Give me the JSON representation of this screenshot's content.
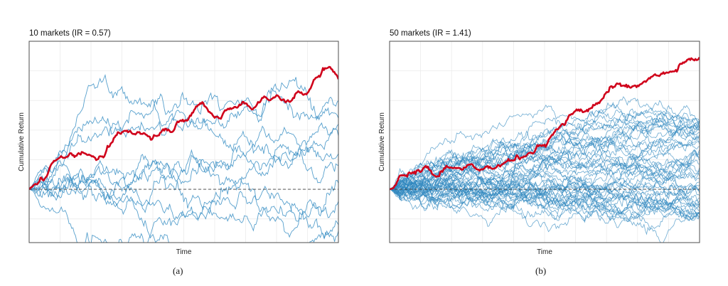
{
  "colors": {
    "markets": "#3a8fc4",
    "combined": "#d0021b",
    "grid": "#ebebeb",
    "frame": "#4d4d4d",
    "zero_line": "#3c3c3c"
  },
  "chart_data": [
    {
      "type": "line",
      "title": "10 markets (IR = 0.57)",
      "caption": "(a)",
      "xlabel": "Time",
      "ylabel": "Cumulative Return",
      "xlim": [
        0,
        100
      ],
      "ylim": [
        -9,
        25
      ],
      "reference_line": {
        "y": 0,
        "style": "dashed"
      },
      "grid": true,
      "num_market_series": 10,
      "combined_series": {
        "color": "#d0021b",
        "anchors": [
          [
            0,
            0
          ],
          [
            3,
            1.5
          ],
          [
            8,
            4.6
          ],
          [
            14,
            6.6
          ],
          [
            20,
            7.5
          ],
          [
            24,
            7.3
          ],
          [
            28,
            9.8
          ],
          [
            34,
            10.3
          ],
          [
            40,
            10.7
          ],
          [
            45,
            11.3
          ],
          [
            50,
            12
          ],
          [
            54,
            13.4
          ],
          [
            56,
            14.2
          ],
          [
            58,
            12.6
          ],
          [
            60,
            11.4
          ],
          [
            62,
            10.4
          ],
          [
            64,
            12.3
          ],
          [
            67,
            13.1
          ],
          [
            70,
            13.7
          ],
          [
            72,
            13.2
          ],
          [
            74,
            14.3
          ],
          [
            76,
            15.3
          ],
          [
            78,
            15.6
          ],
          [
            80,
            16.2
          ],
          [
            83,
            14.1
          ],
          [
            86,
            14.8
          ],
          [
            89,
            15.8
          ],
          [
            91,
            15.9
          ],
          [
            93,
            17.7
          ],
          [
            95,
            19.4
          ],
          [
            97,
            20.1
          ],
          [
            99,
            19.5
          ],
          [
            100,
            18.6
          ]
        ]
      },
      "market_series": [
        {
          "color": "#3a8fc4",
          "anchors": [
            [
              0,
              0
            ],
            [
              12,
              6
            ],
            [
              25,
              9
            ],
            [
              40,
              11
            ],
            [
              55,
              13
            ],
            [
              70,
              15
            ],
            [
              85,
              16
            ],
            [
              100,
              15
            ]
          ]
        },
        {
          "color": "#3a8fc4",
          "anchors": [
            [
              0,
              0
            ],
            [
              12,
              5
            ],
            [
              25,
              7
            ],
            [
              40,
              9
            ],
            [
              55,
              10
            ],
            [
              70,
              11
            ],
            [
              85,
              14
            ],
            [
              100,
              12
            ]
          ]
        },
        {
          "color": "#3a8fc4",
          "anchors": [
            [
              0,
              0
            ],
            [
              12,
              4
            ],
            [
              25,
              6
            ],
            [
              40,
              7
            ],
            [
              55,
              9
            ],
            [
              70,
              10
            ],
            [
              85,
              12
            ],
            [
              100,
              11
            ]
          ]
        },
        {
          "color": "#3a8fc4",
          "anchors": [
            [
              0,
              0
            ],
            [
              12,
              3
            ],
            [
              25,
              5
            ],
            [
              40,
              6
            ],
            [
              55,
              6
            ],
            [
              70,
              8
            ],
            [
              85,
              9
            ],
            [
              100,
              9
            ]
          ]
        },
        {
          "color": "#3a8fc4",
          "anchors": [
            [
              0,
              0
            ],
            [
              12,
              4
            ],
            [
              25,
              8
            ],
            [
              40,
              5
            ],
            [
              55,
              4
            ],
            [
              70,
              6
            ],
            [
              85,
              5
            ],
            [
              100,
              6
            ]
          ]
        },
        {
          "color": "#3a8fc4",
          "anchors": [
            [
              0,
              0
            ],
            [
              12,
              2
            ],
            [
              25,
              3
            ],
            [
              40,
              4
            ],
            [
              55,
              2
            ],
            [
              70,
              3
            ],
            [
              85,
              4
            ],
            [
              100,
              4
            ]
          ]
        },
        {
          "color": "#3a8fc4",
          "anchors": [
            [
              0,
              0
            ],
            [
              12,
              2
            ],
            [
              25,
              1
            ],
            [
              40,
              2
            ],
            [
              55,
              0
            ],
            [
              70,
              1
            ],
            [
              85,
              1
            ],
            [
              100,
              1
            ]
          ]
        },
        {
          "color": "#3a8fc4",
          "anchors": [
            [
              0,
              0
            ],
            [
              12,
              1
            ],
            [
              25,
              -1
            ],
            [
              40,
              -1
            ],
            [
              55,
              -2
            ],
            [
              70,
              -2
            ],
            [
              85,
              -3
            ],
            [
              100,
              -2
            ]
          ]
        },
        {
          "color": "#3a8fc4",
          "anchors": [
            [
              0,
              0
            ],
            [
              12,
              0
            ],
            [
              25,
              -2
            ],
            [
              40,
              -1
            ],
            [
              55,
              -3
            ],
            [
              70,
              -4
            ],
            [
              85,
              -5
            ],
            [
              100,
              -6
            ]
          ]
        },
        {
          "color": "#3a8fc4",
          "anchors": [
            [
              0,
              0
            ],
            [
              12,
              -1
            ],
            [
              25,
              -2
            ],
            [
              40,
              -3
            ],
            [
              55,
              -4
            ],
            [
              70,
              -5
            ],
            [
              80,
              -8.5
            ],
            [
              90,
              -6
            ],
            [
              100,
              -7
            ]
          ]
        }
      ]
    },
    {
      "type": "line",
      "title": "50 markets (IR = 1.41)",
      "caption": "(b)",
      "xlabel": "Time",
      "ylabel": "Cumulative Return",
      "xlim": [
        0,
        100
      ],
      "ylim": [
        -9,
        25
      ],
      "reference_line": {
        "y": 0,
        "style": "dashed"
      },
      "grid": true,
      "num_market_series": 50,
      "combined_series": {
        "color": "#d0021b",
        "anchors": [
          [
            0,
            0
          ],
          [
            8,
            0.9
          ],
          [
            16,
            2.3
          ],
          [
            22,
            3.3
          ],
          [
            28,
            4.2
          ],
          [
            34,
            5.1
          ],
          [
            40,
            6.6
          ],
          [
            46,
            8.3
          ],
          [
            52,
            10.1
          ],
          [
            58,
            11.8
          ],
          [
            64,
            13.3
          ],
          [
            70,
            15
          ],
          [
            76,
            16.6
          ],
          [
            82,
            18.2
          ],
          [
            88,
            19.3
          ],
          [
            92,
            20
          ],
          [
            96,
            21.1
          ],
          [
            100,
            22.3
          ]
        ]
      },
      "market_series_envelope": {
        "color": "#2f87bf",
        "upper_end": 11.5,
        "lower_end": -4.5,
        "density_band": [
          -1,
          6
        ]
      }
    }
  ]
}
